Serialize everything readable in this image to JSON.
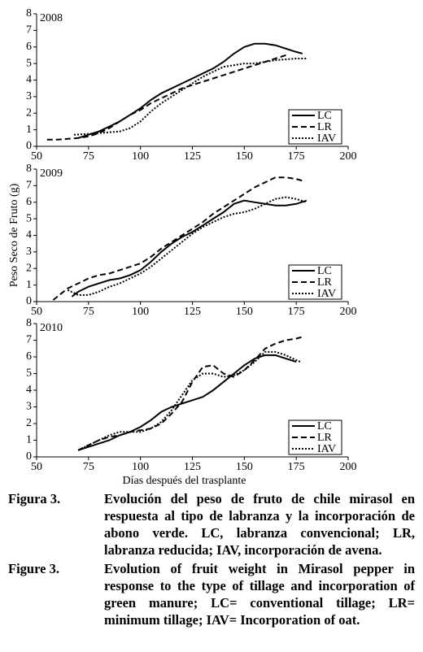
{
  "chart_data": [
    {
      "type": "line",
      "title": "2008",
      "xlim": [
        50,
        200
      ],
      "ylim": [
        0,
        8
      ],
      "xticks": [
        50,
        75,
        100,
        125,
        150,
        175,
        200
      ],
      "yticks": [
        0,
        1,
        2,
        3,
        4,
        5,
        6,
        7,
        8
      ],
      "legend": "lower right",
      "series": [
        {
          "name": "LC",
          "color": "#000000",
          "linestyle": "solid",
          "x": [
            70,
            75,
            80,
            85,
            90,
            95,
            100,
            105,
            110,
            115,
            120,
            125,
            130,
            135,
            140,
            145,
            150,
            155,
            160,
            165,
            170,
            175,
            178
          ],
          "values": [
            0.5,
            0.7,
            0.9,
            1.2,
            1.5,
            1.9,
            2.3,
            2.8,
            3.2,
            3.5,
            3.8,
            4.1,
            4.4,
            4.7,
            5.1,
            5.6,
            6.0,
            6.2,
            6.2,
            6.1,
            5.9,
            5.7,
            5.6
          ]
        },
        {
          "name": "LR",
          "color": "#000000",
          "linestyle": "dashed",
          "x": [
            55,
            60,
            65,
            70,
            75,
            80,
            85,
            90,
            95,
            100,
            105,
            110,
            115,
            120,
            125,
            130,
            135,
            140,
            145,
            150,
            155,
            160,
            165,
            170
          ],
          "values": [
            0.4,
            0.4,
            0.45,
            0.5,
            0.6,
            0.8,
            1.1,
            1.5,
            1.9,
            2.2,
            2.6,
            2.9,
            3.2,
            3.5,
            3.7,
            3.9,
            4.1,
            4.3,
            4.5,
            4.7,
            4.9,
            5.1,
            5.3,
            5.5
          ]
        },
        {
          "name": "IAV",
          "color": "#000000",
          "linestyle": "dotted",
          "x": [
            68,
            75,
            80,
            85,
            90,
            95,
            100,
            105,
            110,
            115,
            120,
            125,
            130,
            135,
            140,
            145,
            150,
            155,
            160,
            165,
            170,
            175,
            180
          ],
          "values": [
            0.7,
            0.75,
            0.8,
            0.85,
            0.9,
            1.1,
            1.5,
            2.1,
            2.6,
            3.0,
            3.4,
            3.8,
            4.2,
            4.5,
            4.8,
            4.9,
            5.0,
            5.0,
            5.1,
            5.2,
            5.25,
            5.3,
            5.3
          ]
        }
      ]
    },
    {
      "type": "line",
      "title": "2009",
      "ylabel": "Peso Seco de Fruto (g)",
      "xlim": [
        50,
        200
      ],
      "ylim": [
        0,
        8
      ],
      "xticks": [
        50,
        75,
        100,
        125,
        150,
        175,
        200
      ],
      "yticks": [
        0,
        1,
        2,
        3,
        4,
        5,
        6,
        7,
        8
      ],
      "legend": "lower right",
      "series": [
        {
          "name": "LC",
          "color": "#000000",
          "linestyle": "solid",
          "x": [
            67,
            70,
            75,
            80,
            85,
            90,
            95,
            100,
            105,
            110,
            115,
            120,
            125,
            130,
            135,
            140,
            145,
            150,
            155,
            160,
            165,
            170,
            175,
            180
          ],
          "values": [
            0.3,
            0.6,
            0.9,
            1.1,
            1.3,
            1.4,
            1.6,
            1.9,
            2.4,
            3.0,
            3.5,
            3.9,
            4.2,
            4.6,
            5.0,
            5.4,
            5.9,
            6.1,
            6.0,
            5.9,
            5.8,
            5.8,
            5.9,
            6.1
          ]
        },
        {
          "name": "LR",
          "color": "#000000",
          "linestyle": "dashed",
          "x": [
            58,
            62,
            65,
            70,
            75,
            80,
            85,
            90,
            95,
            100,
            105,
            110,
            115,
            120,
            125,
            130,
            135,
            140,
            145,
            150,
            155,
            160,
            165,
            170,
            175,
            178
          ],
          "values": [
            0.1,
            0.5,
            0.8,
            1.1,
            1.4,
            1.6,
            1.7,
            1.9,
            2.1,
            2.3,
            2.7,
            3.2,
            3.6,
            4.0,
            4.4,
            4.8,
            5.3,
            5.7,
            6.1,
            6.5,
            6.9,
            7.2,
            7.5,
            7.5,
            7.4,
            7.3
          ]
        },
        {
          "name": "IAV",
          "color": "#000000",
          "linestyle": "dotted",
          "x": [
            65,
            70,
            75,
            80,
            85,
            90,
            95,
            100,
            105,
            110,
            115,
            120,
            125,
            130,
            135,
            140,
            145,
            150,
            155,
            160,
            165,
            170,
            175,
            180
          ],
          "values": [
            0.7,
            0.4,
            0.4,
            0.6,
            0.9,
            1.1,
            1.4,
            1.7,
            2.1,
            2.6,
            3.1,
            3.6,
            4.1,
            4.5,
            4.8,
            5.1,
            5.3,
            5.4,
            5.6,
            5.9,
            6.2,
            6.3,
            6.2,
            6.0
          ]
        }
      ]
    },
    {
      "type": "line",
      "title": "2010",
      "xlabel": "Días después del trasplante",
      "xlim": [
        50,
        200
      ],
      "ylim": [
        0,
        8
      ],
      "xticks": [
        50,
        75,
        100,
        125,
        150,
        175,
        200
      ],
      "yticks": [
        0,
        1,
        2,
        3,
        4,
        5,
        6,
        7,
        8
      ],
      "legend": "lower right",
      "series": [
        {
          "name": "LC",
          "color": "#000000",
          "linestyle": "solid",
          "x": [
            70,
            75,
            80,
            85,
            90,
            95,
            100,
            105,
            110,
            115,
            120,
            125,
            130,
            135,
            140,
            145,
            150,
            155,
            160,
            165,
            170,
            175
          ],
          "values": [
            0.4,
            0.6,
            0.8,
            1.0,
            1.3,
            1.5,
            1.8,
            2.2,
            2.7,
            3.0,
            3.2,
            3.4,
            3.6,
            4.0,
            4.5,
            5.0,
            5.5,
            5.9,
            6.1,
            6.1,
            5.9,
            5.7
          ]
        },
        {
          "name": "LR",
          "color": "#000000",
          "linestyle": "dashed",
          "x": [
            70,
            75,
            80,
            85,
            90,
            95,
            100,
            105,
            110,
            115,
            120,
            125,
            130,
            135,
            140,
            145,
            150,
            155,
            160,
            165,
            170,
            175,
            178
          ],
          "values": [
            0.4,
            0.7,
            1.0,
            1.2,
            1.3,
            1.5,
            1.6,
            1.7,
            2.0,
            2.6,
            3.3,
            4.5,
            5.4,
            5.5,
            5.0,
            4.8,
            5.2,
            5.8,
            6.5,
            6.8,
            7.0,
            7.1,
            7.2
          ]
        },
        {
          "name": "IAV",
          "color": "#000000",
          "linestyle": "dotted",
          "x": [
            70,
            75,
            80,
            85,
            90,
            95,
            100,
            105,
            110,
            115,
            120,
            125,
            130,
            135,
            140,
            145,
            150,
            155,
            160,
            165,
            170,
            175,
            177
          ],
          "values": [
            0.4,
            0.7,
            1.0,
            1.3,
            1.5,
            1.5,
            1.5,
            1.7,
            2.1,
            2.8,
            3.7,
            4.6,
            5.0,
            5.0,
            4.8,
            4.9,
            5.2,
            5.7,
            6.3,
            6.3,
            6.1,
            5.8,
            5.7
          ]
        }
      ]
    }
  ],
  "caption": [
    {
      "label": "Figura 3.",
      "text": "Evolución del peso de fruto de chile mirasol en respuesta al tipo de labranza y la incorporación de abono verde. LC, labranza convencional; LR, labranza reducida; IAV, incorporación de avena."
    },
    {
      "label": "Figure 3.",
      "text": "Evolution of fruit weight in Mirasol pepper in response to the type of tillage and incorporation of green manure; LC= conventional tillage; LR= minimum tillage; IAV= Incorporation of oat."
    }
  ]
}
